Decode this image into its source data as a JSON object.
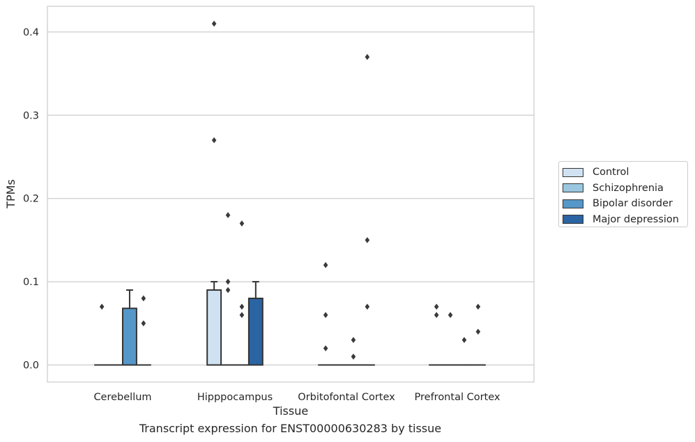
{
  "caption": "Transcript expression for ENST00000630283 by tissue",
  "chart_data": {
    "type": "box",
    "xlabel": "Tissue",
    "ylabel": "TPMs",
    "ylim": [
      -0.02,
      0.43
    ],
    "yticks": [
      0.0,
      0.1,
      0.2,
      0.3,
      0.4
    ],
    "ytick_labels": [
      "0.0",
      "0.1",
      "0.2",
      "0.3",
      "0.4"
    ],
    "grid": true,
    "legend_placement": "outside-right",
    "categories": [
      "Cerebellum",
      "Hipppocampus",
      "Orbitofontal Cortex",
      "Prefrontal Cortex"
    ],
    "series": [
      {
        "name": "Control",
        "color": "#d0e2f1"
      },
      {
        "name": "Schizophrenia",
        "color": "#9ac7df"
      },
      {
        "name": "Bipolar disorder",
        "color": "#5597c8"
      },
      {
        "name": "Major depression",
        "color": "#2a64a2"
      }
    ],
    "boxes": [
      {
        "category": "Cerebellum",
        "series": "Control",
        "q1": 0,
        "median": 0,
        "q3": 0,
        "whislo": 0,
        "whishi": 0,
        "fliers": [
          0.07
        ]
      },
      {
        "category": "Cerebellum",
        "series": "Schizophrenia",
        "q1": 0,
        "median": 0,
        "q3": 0,
        "whislo": 0,
        "whishi": 0,
        "fliers": []
      },
      {
        "category": "Cerebellum",
        "series": "Bipolar disorder",
        "q1": 0,
        "median": 0,
        "q3": 0.068,
        "whislo": 0,
        "whishi": 0.09,
        "fliers": []
      },
      {
        "category": "Cerebellum",
        "series": "Major depression",
        "q1": 0,
        "median": 0,
        "q3": 0,
        "whislo": 0,
        "whishi": 0,
        "fliers": [
          0.08,
          0.05
        ]
      },
      {
        "category": "Hipppocampus",
        "series": "Control",
        "q1": 0,
        "median": 0,
        "q3": 0.09,
        "whislo": 0,
        "whishi": 0.1,
        "fliers": [
          0.41,
          0.27
        ]
      },
      {
        "category": "Hipppocampus",
        "series": "Schizophrenia",
        "q1": 0,
        "median": 0,
        "q3": 0,
        "whislo": 0,
        "whishi": 0,
        "fliers": [
          0.18,
          0.1,
          0.09
        ]
      },
      {
        "category": "Hipppocampus",
        "series": "Bipolar disorder",
        "q1": 0,
        "median": 0,
        "q3": 0,
        "whislo": 0,
        "whishi": 0,
        "fliers": [
          0.17,
          0.07,
          0.06
        ]
      },
      {
        "category": "Hipppocampus",
        "series": "Major depression",
        "q1": 0,
        "median": 0,
        "q3": 0.08,
        "whislo": 0,
        "whishi": 0.1,
        "fliers": []
      },
      {
        "category": "Orbitofontal Cortex",
        "series": "Control",
        "q1": 0,
        "median": 0,
        "q3": 0,
        "whislo": 0,
        "whishi": 0,
        "fliers": [
          0.12,
          0.06,
          0.02
        ]
      },
      {
        "category": "Orbitofontal Cortex",
        "series": "Schizophrenia",
        "q1": 0,
        "median": 0,
        "q3": 0,
        "whislo": 0,
        "whishi": 0,
        "fliers": []
      },
      {
        "category": "Orbitofontal Cortex",
        "series": "Bipolar disorder",
        "q1": 0,
        "median": 0,
        "q3": 0,
        "whislo": 0,
        "whishi": 0,
        "fliers": [
          0.03,
          0.01
        ]
      },
      {
        "category": "Orbitofontal Cortex",
        "series": "Major depression",
        "q1": 0,
        "median": 0,
        "q3": 0,
        "whislo": 0,
        "whishi": 0,
        "fliers": [
          0.37,
          0.15,
          0.07
        ]
      },
      {
        "category": "Prefrontal Cortex",
        "series": "Control",
        "q1": 0,
        "median": 0,
        "q3": 0,
        "whislo": 0,
        "whishi": 0,
        "fliers": [
          0.07,
          0.06
        ]
      },
      {
        "category": "Prefrontal Cortex",
        "series": "Schizophrenia",
        "q1": 0,
        "median": 0,
        "q3": 0,
        "whislo": 0,
        "whishi": 0,
        "fliers": [
          0.06
        ]
      },
      {
        "category": "Prefrontal Cortex",
        "series": "Bipolar disorder",
        "q1": 0,
        "median": 0,
        "q3": 0,
        "whislo": 0,
        "whishi": 0,
        "fliers": [
          0.03
        ]
      },
      {
        "category": "Prefrontal Cortex",
        "series": "Major depression",
        "q1": 0,
        "median": 0,
        "q3": 0,
        "whislo": 0,
        "whishi": 0,
        "fliers": [
          0.07,
          0.04
        ]
      }
    ]
  }
}
